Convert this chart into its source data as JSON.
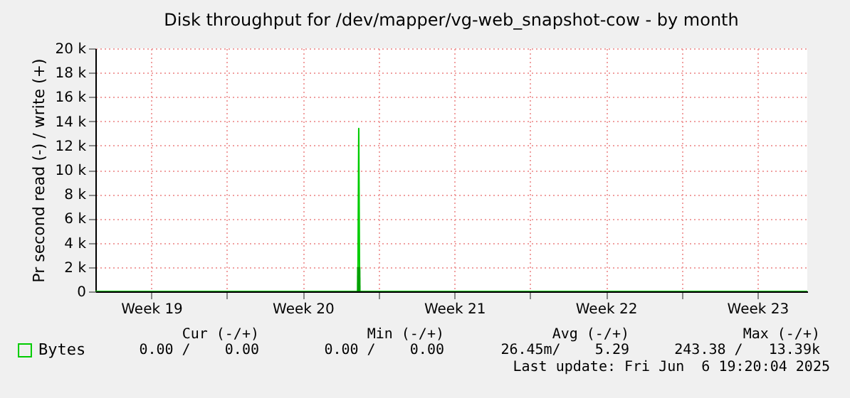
{
  "chart_data": {
    "type": "line",
    "title": "Disk throughput for /dev/mapper/vg-web_snapshot-cow - by month",
    "ylabel": "Pr second read (-) / write (+)",
    "xlim": [
      "2025-05-04T22:00",
      "2025-06-06T19:20"
    ],
    "ylim": [
      0,
      20000
    ],
    "xticks": [
      {
        "value": "2025-05-07T12:00",
        "label": "Week 19"
      },
      {
        "value": "2025-05-11",
        "label": null
      },
      {
        "value": "2025-05-14T12:00",
        "label": "Week 20"
      },
      {
        "value": "2025-05-18",
        "label": null
      },
      {
        "value": "2025-05-21T12:00",
        "label": "Week 21"
      },
      {
        "value": "2025-05-25",
        "label": null
      },
      {
        "value": "2025-05-28T12:00",
        "label": "Week 22"
      },
      {
        "value": "2025-06-01",
        "label": null
      },
      {
        "value": "2025-06-04T12:00",
        "label": "Week 23"
      }
    ],
    "yticks": [
      0,
      {
        "value": 2000,
        "label": "2 k"
      },
      {
        "value": 4000,
        "label": "4 k"
      },
      {
        "value": 6000,
        "label": "6 k"
      },
      {
        "value": 8000,
        "label": "8 k"
      },
      {
        "value": 10000,
        "label": "10 k"
      },
      {
        "value": 12000,
        "label": "12 k"
      },
      {
        "value": 14000,
        "label": "14 k"
      },
      {
        "value": 16000,
        "label": "16 k"
      },
      {
        "value": 18000,
        "label": "18 k"
      },
      {
        "value": 20000,
        "label": "20 k"
      }
    ],
    "series": [
      {
        "name": "Bytes",
        "color": "#00cc00",
        "x": [
          "2025-05-04T22:00",
          "2025-05-17T01:00",
          "2025-05-17T02:00",
          "2025-05-17T03:00",
          "2025-06-06T19:20"
        ],
        "values": [
          0,
          0,
          13400,
          0,
          0
        ]
      },
      {
        "type": "area",
        "color": "#00a000",
        "x": [
          "2025-05-17T00:00",
          "2025-05-17T00:10",
          "2025-05-17T03:50",
          "2025-05-17T04:00"
        ],
        "values": [
          0,
          2000,
          2000,
          0
        ]
      }
    ],
    "grid": true,
    "legend": "bottom",
    "annotations": [
      "Cur (-/+)",
      "Min (-/+)",
      "Avg (-/+)",
      "Max (-/+)",
      "0.00 /    0.00",
      "0.00 /    0.00",
      "26.45m/    5.29",
      "243.38 /   13.39k",
      "Last update: Fri Jun  6 19:20:04 2025"
    ]
  }
}
